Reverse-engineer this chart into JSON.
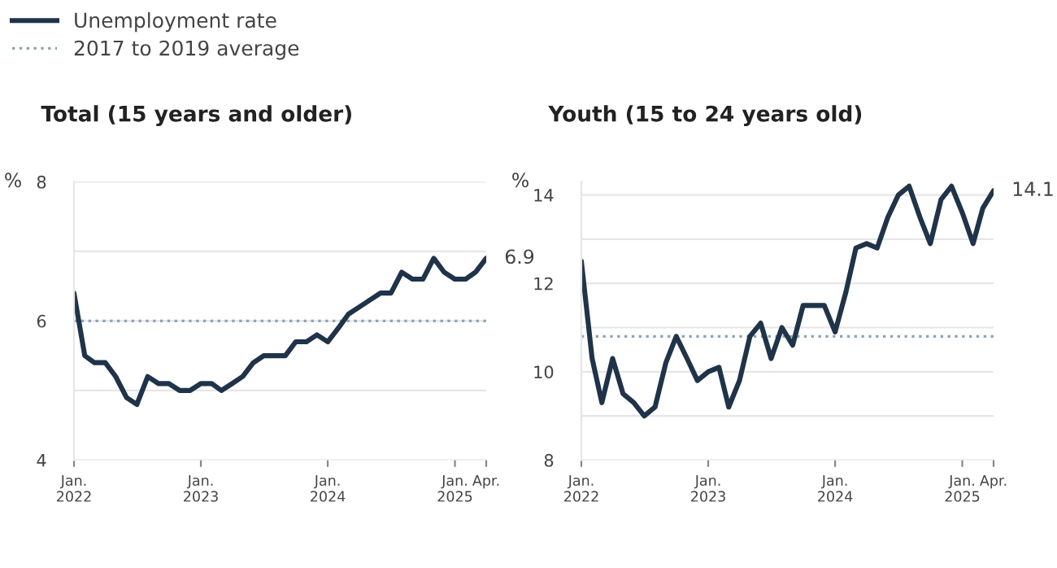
{
  "chart_data": [
    {
      "type": "line",
      "title": "Total (15 years and older)",
      "ylabel": "%",
      "legend": "top left",
      "grid": "y",
      "marker": "none",
      "line_style": "solid",
      "x": [
        "2022-01",
        "2022-02",
        "2022-03",
        "2022-04",
        "2022-05",
        "2022-06",
        "2022-07",
        "2022-08",
        "2022-09",
        "2022-10",
        "2022-11",
        "2022-12",
        "2023-01",
        "2023-02",
        "2023-03",
        "2023-04",
        "2023-05",
        "2023-06",
        "2023-07",
        "2023-08",
        "2023-09",
        "2023-10",
        "2023-11",
        "2023-12",
        "2024-01",
        "2024-02",
        "2024-03",
        "2024-04",
        "2024-05",
        "2024-06",
        "2024-07",
        "2024-08",
        "2024-09",
        "2024-10",
        "2024-11",
        "2024-12",
        "2025-01",
        "2025-02",
        "2025-03",
        "2025-04"
      ],
      "series": [
        {
          "name": "Unemployment rate",
          "color": "#1f3349",
          "values": [
            6.4,
            5.5,
            5.4,
            5.4,
            5.2,
            4.9,
            4.8,
            5.2,
            5.1,
            5.1,
            5.0,
            5.0,
            5.1,
            5.1,
            5.0,
            5.1,
            5.2,
            5.4,
            5.5,
            5.5,
            5.5,
            5.7,
            5.7,
            5.8,
            5.7,
            5.9,
            6.1,
            6.2,
            6.3,
            6.4,
            6.4,
            6.7,
            6.6,
            6.6,
            6.9,
            6.7,
            6.6,
            6.6,
            6.7,
            6.9
          ]
        }
      ],
      "ref_lines": [
        {
          "axis": "y",
          "value": 6.0,
          "label": "2017 to 2019 average",
          "color": "#8fa3b8",
          "line_style": "dotted"
        }
      ],
      "annotations": [
        {
          "text": "6.9",
          "x": "2025-04",
          "y": 6.9
        }
      ],
      "xlim": [
        "2022-01",
        "2025-04"
      ],
      "xticks": [
        {
          "value": "2022-01",
          "label": "Jan.\n2022"
        },
        {
          "value": "2023-01",
          "label": "Jan.\n2023"
        },
        {
          "value": "2024-01",
          "label": "Jan.\n2024"
        },
        {
          "value": "2025-01",
          "label": "Jan.\n2025"
        },
        {
          "value": "2025-04",
          "label": "Apr."
        }
      ],
      "ylim": [
        4,
        8
      ],
      "yticks": [
        4,
        {
          "value": 5,
          "label": null
        },
        6,
        {
          "value": 7,
          "label": null
        },
        8
      ]
    },
    {
      "type": "line",
      "title": "Youth (15 to 24 years old)",
      "ylabel": "%",
      "grid": "y",
      "marker": "none",
      "line_style": "solid",
      "x": [
        "2022-01",
        "2022-02",
        "2022-03",
        "2022-04",
        "2022-05",
        "2022-06",
        "2022-07",
        "2022-08",
        "2022-09",
        "2022-10",
        "2022-11",
        "2022-12",
        "2023-01",
        "2023-02",
        "2023-03",
        "2023-04",
        "2023-05",
        "2023-06",
        "2023-07",
        "2023-08",
        "2023-09",
        "2023-10",
        "2023-11",
        "2023-12",
        "2024-01",
        "2024-02",
        "2024-03",
        "2024-04",
        "2024-05",
        "2024-06",
        "2024-07",
        "2024-08",
        "2024-09",
        "2024-10",
        "2024-11",
        "2024-12",
        "2025-01",
        "2025-02",
        "2025-03",
        "2025-04"
      ],
      "series": [
        {
          "color": "#1f3349",
          "values": [
            12.5,
            10.3,
            9.3,
            10.3,
            9.5,
            9.3,
            9.0,
            9.2,
            10.2,
            10.8,
            10.3,
            9.8,
            10.0,
            10.1,
            9.2,
            9.8,
            10.8,
            11.1,
            10.3,
            11.0,
            10.6,
            11.5,
            11.5,
            11.5,
            10.9,
            11.8,
            12.8,
            12.9,
            12.8,
            13.5,
            14.0,
            14.2,
            13.5,
            12.9,
            13.9,
            14.2,
            13.6,
            12.9,
            13.7,
            14.1
          ]
        }
      ],
      "ref_lines": [
        {
          "axis": "y",
          "value": 10.8,
          "color": "#8fa3b8",
          "line_style": "dotted"
        }
      ],
      "annotations": [
        {
          "text": "14.1",
          "x": "2025-04",
          "y": 14.1
        }
      ],
      "xlim": [
        "2022-01",
        "2025-04"
      ],
      "xticks": [
        {
          "value": "2022-01",
          "label": "Jan.\n2022"
        },
        {
          "value": "2023-01",
          "label": "Jan.\n2023"
        },
        {
          "value": "2024-01",
          "label": "Jan.\n2024"
        },
        {
          "value": "2025-01",
          "label": "Jan.\n2025"
        },
        {
          "value": "2025-04",
          "label": "Apr."
        }
      ],
      "ylim": [
        8,
        14.3
      ],
      "yticks": [
        8,
        {
          "value": 9,
          "label": null
        },
        10,
        {
          "value": 11,
          "label": null
        },
        12,
        {
          "value": 13,
          "label": null
        },
        14
      ]
    }
  ]
}
